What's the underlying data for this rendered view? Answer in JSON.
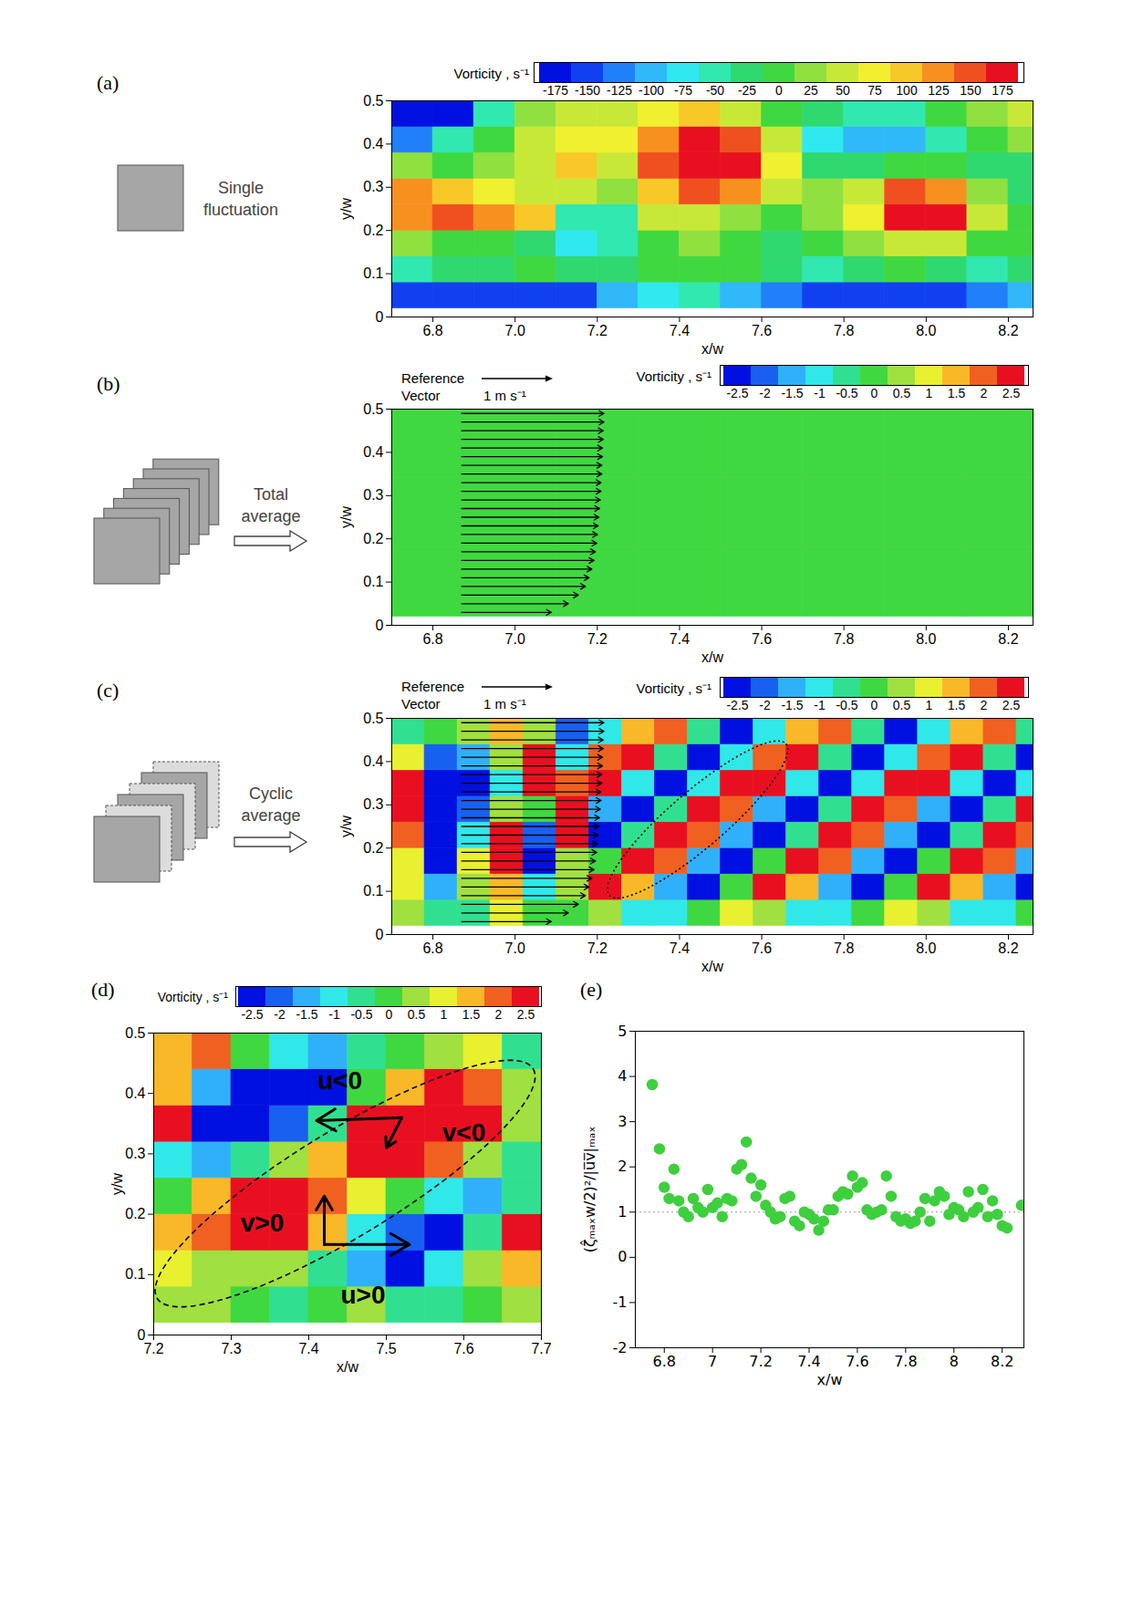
{
  "chart_data": [
    {
      "type": "heatmap",
      "panel": "(a)",
      "caption": "Single fluctuation",
      "xlabel": "x/w",
      "ylabel": "y/w",
      "xlim": [
        6.7,
        8.26
      ],
      "ylim": [
        0,
        0.5
      ],
      "xticks": [
        6.8,
        {
          "value": 7,
          "label": "7.0"
        },
        7.2,
        7.4,
        7.6,
        7.8,
        {
          "value": 8,
          "label": "8.0"
        },
        8.2
      ],
      "yticks": [
        0,
        0.1,
        0.2,
        0.3,
        0.4,
        0.5
      ],
      "colorbar": {
        "title": "Vorticity , s⁻¹",
        "ticks": [
          -175,
          -150,
          -125,
          -100,
          -75,
          -50,
          -25,
          0,
          25,
          50,
          75,
          100,
          125,
          150,
          175
        ],
        "colors": [
          "#0010e0",
          "#1040f0",
          "#2080f8",
          "#30b8f8",
          "#30e8f0",
          "#30e8b0",
          "#30d870",
          "#40d840",
          "#90e040",
          "#c8e838",
          "#f0f030",
          "#f8c828",
          "#f89020",
          "#f05020",
          "#e81020"
        ]
      },
      "x_bins": [
        6.7,
        6.8,
        6.9,
        7.0,
        7.1,
        7.2,
        7.3,
        7.4,
        7.5,
        7.6,
        7.7,
        7.8,
        7.9,
        8.0,
        8.1,
        8.2,
        8.3
      ],
      "y_bins": [
        0.02,
        0.08,
        0.14,
        0.2,
        0.26,
        0.32,
        0.38,
        0.44,
        0.5
      ],
      "values": [
        [
          -150,
          -160,
          -150,
          -140,
          -150,
          -110,
          -80,
          -60,
          -90,
          -130,
          -150,
          -160,
          -150,
          -140,
          -120,
          -100
        ],
        [
          -40,
          -30,
          -20,
          -10,
          -30,
          -20,
          0,
          10,
          -10,
          -30,
          -40,
          -20,
          0,
          -20,
          -40,
          -30
        ],
        [
          20,
          10,
          0,
          -20,
          -80,
          -60,
          0,
          30,
          10,
          -20,
          -10,
          20,
          60,
          40,
          10,
          -10
        ],
        [
          120,
          140,
          130,
          90,
          -60,
          -40,
          40,
          60,
          30,
          0,
          20,
          80,
          170,
          175,
          60,
          10
        ],
        [
          130,
          110,
          80,
          60,
          40,
          20,
          90,
          150,
          120,
          40,
          30,
          60,
          140,
          120,
          20,
          -20
        ],
        [
          30,
          10,
          20,
          50,
          90,
          60,
          140,
          175,
          175,
          80,
          -20,
          -30,
          0,
          -10,
          -30,
          -20
        ],
        [
          -120,
          -60,
          0,
          40,
          70,
          70,
          130,
          170,
          150,
          40,
          -80,
          -110,
          -100,
          -40,
          0,
          20
        ],
        [
          -170,
          -175,
          -60,
          20,
          40,
          50,
          80,
          100,
          60,
          10,
          -20,
          -40,
          -50,
          0,
          30,
          40
        ]
      ]
    },
    {
      "type": "heatmap",
      "panel": "(b)",
      "caption": "Total average",
      "xlabel": "x/w",
      "ylabel": "y/w",
      "xlim": [
        6.7,
        8.26
      ],
      "ylim": [
        0,
        0.5
      ],
      "xticks": [
        6.8,
        {
          "value": 7,
          "label": "7.0"
        },
        7.2,
        7.4,
        7.6,
        7.8,
        {
          "value": 8,
          "label": "8.0"
        },
        8.2
      ],
      "yticks": [
        0,
        0.1,
        0.2,
        0.3,
        0.4,
        0.5
      ],
      "colorbar": {
        "title": "Vorticity , s⁻¹",
        "ticks": [
          -2.5,
          -2,
          -1.5,
          -1,
          -0.5,
          0,
          0.5,
          1,
          1.5,
          2,
          2.5
        ],
        "colors": [
          "#0010e0",
          "#1860f0",
          "#30b0f8",
          "#30e8e8",
          "#30e090",
          "#40d840",
          "#a0e040",
          "#e8f030",
          "#f8b828",
          "#f06020",
          "#e81020"
        ]
      },
      "x_bins": [
        6.7,
        6.9,
        7.1,
        7.3,
        7.5,
        7.7,
        7.9,
        8.1,
        8.3
      ],
      "y_bins": [
        0.02,
        0.18,
        0.34,
        0.5
      ],
      "values": [
        [
          0.1,
          -0.1,
          0.0,
          0.05,
          0.1,
          0.0,
          -0.05,
          0.0
        ],
        [
          0.0,
          -0.15,
          -0.1,
          0.05,
          0.1,
          0.05,
          0.0,
          0.05
        ],
        [
          0.05,
          -0.1,
          -0.05,
          0.0,
          0.05,
          0.1,
          0.05,
          0.0
        ]
      ],
      "vectors": {
        "x": 6.87,
        "y": [
          0.03,
          0.05,
          0.07,
          0.09,
          0.11,
          0.13,
          0.15,
          0.17,
          0.19,
          0.21,
          0.23,
          0.25,
          0.27,
          0.29,
          0.31,
          0.33,
          0.35,
          0.37,
          0.39,
          0.41,
          0.43,
          0.45,
          0.47,
          0.49
        ],
        "u": [
          1.26,
          1.5,
          1.64,
          1.74,
          1.79,
          1.83,
          1.86,
          1.88,
          1.9,
          1.91,
          1.92,
          1.93,
          1.94,
          1.95,
          1.96,
          1.96,
          1.97,
          1.97,
          1.98,
          1.98,
          1.99,
          1.99,
          2.0,
          2.0
        ],
        "reference": {
          "label": "Reference Vector",
          "value": 1,
          "value_label": "1 m s⁻¹"
        }
      }
    },
    {
      "type": "heatmap",
      "panel": "(c)",
      "caption": "Cyclic average",
      "xlabel": "x/w",
      "ylabel": "y/w",
      "xlim": [
        6.7,
        8.26
      ],
      "ylim": [
        0,
        0.5
      ],
      "xticks": [
        6.8,
        {
          "value": 7,
          "label": "7.0"
        },
        7.2,
        7.4,
        7.6,
        7.8,
        {
          "value": 8,
          "label": "8.0"
        },
        8.2
      ],
      "yticks": [
        0,
        0.1,
        0.2,
        0.3,
        0.4,
        0.5
      ],
      "colorbar": {
        "title": "Vorticity , s⁻¹",
        "ticks": [
          -2.5,
          -2,
          -1.5,
          -1,
          -0.5,
          0,
          0.5,
          1,
          1.5,
          2,
          2.5
        ],
        "colors": [
          "#0010e0",
          "#1860f0",
          "#30b0f8",
          "#30e8e8",
          "#30e090",
          "#40d840",
          "#a0e040",
          "#e8f030",
          "#f8b828",
          "#f06020",
          "#e81020"
        ]
      },
      "x_bins": [
        6.7,
        6.78,
        6.86,
        6.94,
        7.02,
        7.1,
        7.18,
        7.26,
        7.34,
        7.42,
        7.5,
        7.58,
        7.66,
        7.74,
        7.82,
        7.9,
        7.98,
        8.06,
        8.14,
        8.22,
        8.3
      ],
      "y_bins": [
        0.02,
        0.08,
        0.14,
        0.2,
        0.26,
        0.32,
        0.38,
        0.44,
        0.5
      ],
      "values": [
        [
          0.5,
          -0.5,
          -0.3,
          0.8,
          0.2,
          -0.2,
          0.6,
          -0.8,
          -1.1,
          0.2,
          1.2,
          0.6,
          -0.8,
          -1.1,
          0.2,
          1.2,
          0.6,
          -0.8,
          -1.1,
          0.2
        ],
        [
          0.8,
          -1.5,
          0.5,
          1.5,
          -0.8,
          0.5,
          2.4,
          1.4,
          -1.6,
          -2.3,
          0.2,
          2.4,
          1.4,
          -1.6,
          -2.3,
          0.2,
          2.4,
          1.4,
          -1.6,
          -2.3
        ],
        [
          1.0,
          -2.5,
          0.8,
          2.8,
          -2.5,
          0.5,
          -0.2,
          2.8,
          1.9,
          -1.6,
          -2.9,
          -0.2,
          2.8,
          1.9,
          -1.6,
          -2.9,
          -0.2,
          2.8,
          1.9,
          -1.6
        ],
        [
          2.0,
          -2.8,
          -1.0,
          2.5,
          -2.0,
          2.5,
          -2.9,
          -0.4,
          2.7,
          2.0,
          -1.4,
          -2.9,
          -0.4,
          2.7,
          2.0,
          -1.4,
          -2.9,
          -0.4,
          2.7,
          2.0
        ],
        [
          2.8,
          -2.8,
          -2.0,
          0.5,
          0.0,
          2.8,
          -1.3,
          -3.0,
          -0.6,
          2.6,
          2.2,
          -1.3,
          -3.0,
          -0.6,
          2.6,
          2.2,
          -1.3,
          -3.0,
          -0.6,
          2.6
        ],
        [
          2.5,
          -2.5,
          -2.8,
          -1.0,
          2.8,
          2.0,
          2.4,
          -0.9,
          -3.0,
          -0.9,
          2.4,
          2.4,
          -0.9,
          -3.0,
          -0.9,
          2.4,
          2.4,
          -0.9,
          -3.0,
          -0.9
        ],
        [
          1.0,
          -2.0,
          -1.5,
          0.5,
          2.5,
          -1.0,
          2.2,
          2.4,
          -0.6,
          -2.8,
          -1.1,
          2.2,
          2.4,
          -0.6,
          -2.8,
          -1.1,
          2.2,
          2.4,
          -0.6,
          -2.8
        ],
        [
          -0.5,
          0.0,
          0.5,
          1.5,
          0.5,
          -2.0,
          -1.2,
          1.7,
          2.2,
          -0.3,
          -2.4,
          -1.2,
          1.7,
          2.2,
          -0.3,
          -2.4,
          -1.2,
          1.7,
          2.2,
          -0.3
        ]
      ],
      "vectors": {
        "x": 6.87,
        "y": [
          0.03,
          0.05,
          0.07,
          0.09,
          0.11,
          0.13,
          0.15,
          0.17,
          0.19,
          0.21,
          0.23,
          0.25,
          0.27,
          0.29,
          0.31,
          0.33,
          0.35,
          0.37,
          0.39,
          0.41,
          0.43,
          0.45,
          0.47,
          0.49
        ],
        "u": [
          1.26,
          1.5,
          1.64,
          1.74,
          1.79,
          1.83,
          1.86,
          1.88,
          1.9,
          1.91,
          1.92,
          1.93,
          1.94,
          1.95,
          1.96,
          1.96,
          1.97,
          1.97,
          1.98,
          1.98,
          1.99,
          1.99,
          2.0,
          2.0
        ],
        "reference": {
          "label": "Reference Vector",
          "value": 1,
          "value_label": "1 m s⁻¹"
        }
      },
      "outline": {
        "from": [
          7.23,
          0.09
        ],
        "to": [
          7.66,
          0.44
        ],
        "line_style": "dotted"
      }
    },
    {
      "type": "heatmap",
      "panel": "(d)",
      "xlabel": "x/w",
      "ylabel": "y/w",
      "xlim": [
        7.2,
        7.7
      ],
      "ylim": [
        0,
        0.5
      ],
      "xticks": [
        7.2,
        7.3,
        7.4,
        7.5,
        7.6,
        7.7
      ],
      "yticks": [
        0,
        0.1,
        0.2,
        0.3,
        0.4,
        0.5
      ],
      "colorbar": {
        "title": "Vorticity , s⁻¹",
        "ticks": [
          -2.5,
          -2,
          -1.5,
          -1,
          -0.5,
          0,
          0.5,
          1,
          1.5,
          2,
          2.5
        ],
        "colors": [
          "#0010e0",
          "#1860f0",
          "#30b0f8",
          "#30e8e8",
          "#30e090",
          "#40d840",
          "#a0e040",
          "#e8f030",
          "#f8b828",
          "#f06020",
          "#e81020"
        ]
      },
      "x_bins": [
        7.2,
        7.25,
        7.3,
        7.35,
        7.4,
        7.45,
        7.5,
        7.55,
        7.6,
        7.65,
        7.7
      ],
      "y_bins": [
        0.02,
        0.08,
        0.14,
        0.2,
        0.26,
        0.32,
        0.38,
        0.44,
        0.5
      ],
      "values": [
        [
          0.5,
          0.3,
          0.0,
          -0.5,
          0.0,
          0.5,
          -0.5,
          -0.3,
          0.0,
          0.5
        ],
        [
          1.0,
          0.5,
          0.3,
          0.5,
          -0.5,
          -1.5,
          -2.5,
          -1.0,
          0.3,
          1.5
        ],
        [
          1.5,
          2.0,
          2.8,
          2.5,
          1.5,
          -1.0,
          -2.0,
          -2.5,
          -0.5,
          2.5
        ],
        [
          0.0,
          1.5,
          2.8,
          2.8,
          2.0,
          0.8,
          0.0,
          -1.0,
          -1.5,
          -0.5
        ],
        [
          -1.0,
          -1.5,
          -0.5,
          0.5,
          1.5,
          2.8,
          2.8,
          2.0,
          0.5,
          -0.5
        ],
        [
          2.5,
          -2.8,
          -2.8,
          -2.0,
          -0.5,
          2.5,
          2.8,
          2.8,
          2.5,
          0.5
        ],
        [
          1.5,
          -1.5,
          -2.8,
          -2.8,
          -2.5,
          0.0,
          1.5,
          2.8,
          2.0,
          0.5
        ],
        [
          1.5,
          2.0,
          0.0,
          -1.0,
          -1.5,
          -0.5,
          0.0,
          0.5,
          1.0,
          -0.5
        ]
      ],
      "outline": {
        "from": [
          7.205,
          0.06
        ],
        "to": [
          7.69,
          0.44
        ],
        "line_style": "dashed"
      },
      "annotations": {
        "labels": [
          {
            "text": "u<0",
            "x": 7.44,
            "y": 0.42
          },
          {
            "text": "v<0",
            "x": 7.6,
            "y": 0.335
          },
          {
            "text": "v>0",
            "x": 7.34,
            "y": 0.185
          },
          {
            "text": "u>0",
            "x": 7.47,
            "y": 0.065
          }
        ],
        "arrows": [
          {
            "x1": 7.52,
            "y1": 0.36,
            "x2": 7.41,
            "y2": 0.355
          },
          {
            "x1": 7.52,
            "y1": 0.36,
            "x2": 7.5,
            "y2": 0.31
          },
          {
            "x1": 7.42,
            "y1": 0.15,
            "x2": 7.42,
            "y2": 0.23
          },
          {
            "x1": 7.42,
            "y1": 0.15,
            "x2": 7.53,
            "y2": 0.15
          }
        ]
      }
    },
    {
      "type": "scatter",
      "panel": "(e)",
      "xlabel": "x/w",
      "ylabel": "(ζ̂ₘₐₓw/2)²/|u̅v̅|ₘₐₓ",
      "xlim": [
        6.68,
        8.29
      ],
      "ylim": [
        -2,
        5
      ],
      "xticks": [
        6.8,
        7,
        7.2,
        7.4,
        7.6,
        7.8,
        8,
        8.2
      ],
      "yticks": [
        -2,
        -1,
        0,
        1,
        2,
        3,
        4,
        5
      ],
      "color": "#3ecf3e",
      "marker": "circle",
      "reference_line": 1,
      "x": [
        6.75,
        6.78,
        6.8,
        6.82,
        6.84,
        6.86,
        6.88,
        6.9,
        6.92,
        6.94,
        6.96,
        6.98,
        7.0,
        7.02,
        7.04,
        7.06,
        7.08,
        7.1,
        7.12,
        7.14,
        7.16,
        7.18,
        7.2,
        7.22,
        7.24,
        7.26,
        7.28,
        7.3,
        7.32,
        7.34,
        7.36,
        7.38,
        7.4,
        7.42,
        7.44,
        7.46,
        7.48,
        7.5,
        7.52,
        7.54,
        7.56,
        7.58,
        7.6,
        7.62,
        7.64,
        7.66,
        7.68,
        7.7,
        7.72,
        7.74,
        7.76,
        7.78,
        7.8,
        7.82,
        7.84,
        7.86,
        7.88,
        7.9,
        7.92,
        7.94,
        7.96,
        7.98,
        8.0,
        8.02,
        8.04,
        8.06,
        8.08,
        8.1,
        8.12,
        8.14,
        8.16,
        8.18,
        8.2,
        8.22,
        8.28
      ],
      "values": [
        3.82,
        2.4,
        1.55,
        1.3,
        1.95,
        1.25,
        1.0,
        0.9,
        1.3,
        1.1,
        1.0,
        1.5,
        1.1,
        1.2,
        0.9,
        1.3,
        1.25,
        1.95,
        2.05,
        2.55,
        1.75,
        1.35,
        1.6,
        1.15,
        1.0,
        0.85,
        0.9,
        1.3,
        1.35,
        0.8,
        0.7,
        1.0,
        0.95,
        0.85,
        0.6,
        0.8,
        1.05,
        1.05,
        1.35,
        1.45,
        1.4,
        1.8,
        1.55,
        1.65,
        1.05,
        0.95,
        1.0,
        1.05,
        1.8,
        1.35,
        0.9,
        0.8,
        0.85,
        0.75,
        0.8,
        1.0,
        1.3,
        0.8,
        1.25,
        1.45,
        1.35,
        0.95,
        1.1,
        1.05,
        0.9,
        1.45,
        1.0,
        1.1,
        1.5,
        0.9,
        1.25,
        0.95,
        0.7,
        0.65,
        1.15
      ]
    }
  ]
}
